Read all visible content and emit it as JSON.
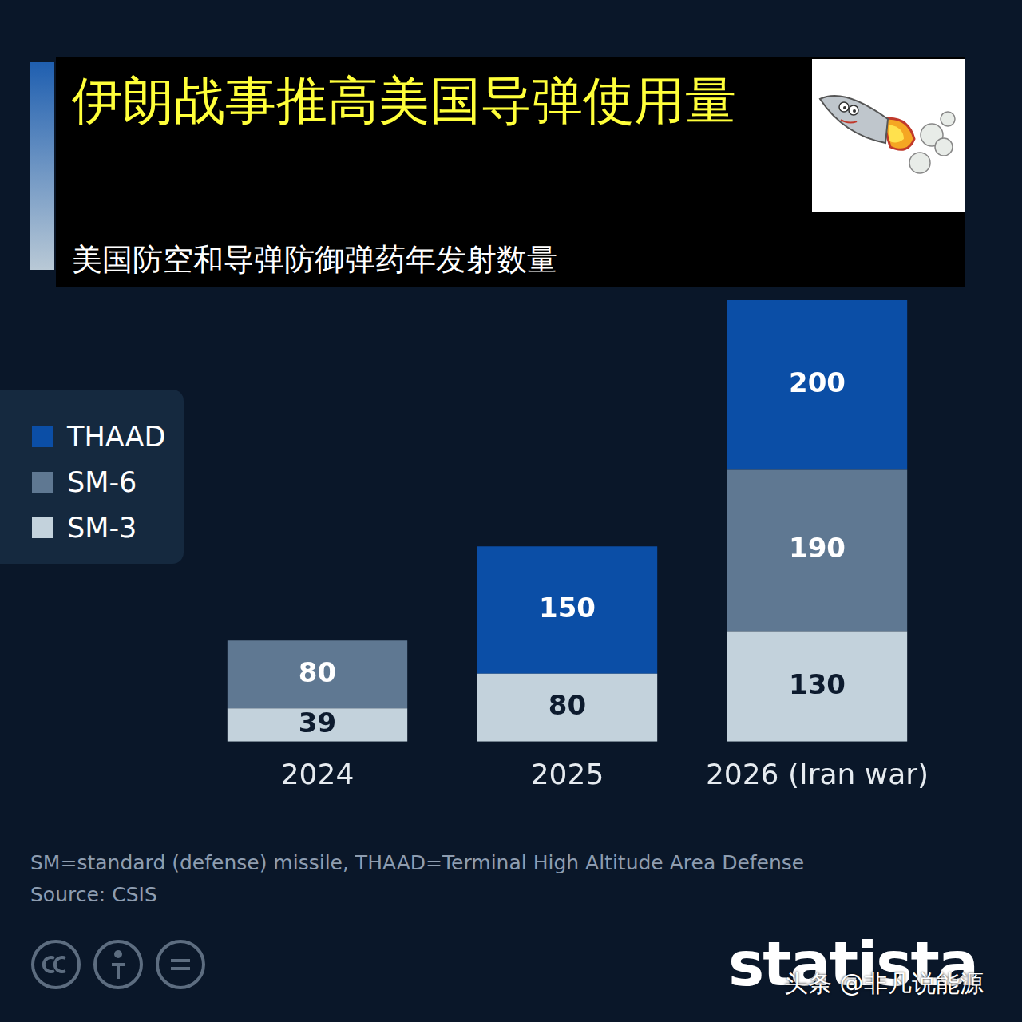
{
  "chart_data": {
    "type": "bar",
    "title": "伊朗战事推高美国导弹使用量",
    "subtitle": "美国防空和导弹防御弹药年发射数量",
    "categories": [
      "2024",
      "2025",
      "2026 (Iran war)"
    ],
    "series": [
      {
        "name": "THAAD",
        "color": "#0b4ea6",
        "values": [
          null,
          150,
          200
        ]
      },
      {
        "name": "SM-6",
        "color": "#5f7892",
        "values": [
          80,
          null,
          190
        ]
      },
      {
        "name": "SM-3",
        "color": "#c3d2dc",
        "values": [
          39,
          80,
          130
        ]
      }
    ],
    "ylim": [
      0,
      520
    ],
    "stacked": true,
    "data_labels": true,
    "tick_labels": "x",
    "grid": false,
    "legend": "left",
    "footnote": "SM=standard (defense) missile, THAAD=Terminal High Altitude Area Defense",
    "source": "Source: CSIS",
    "brand": "statista",
    "credit": "头条 @非凡说能源"
  }
}
